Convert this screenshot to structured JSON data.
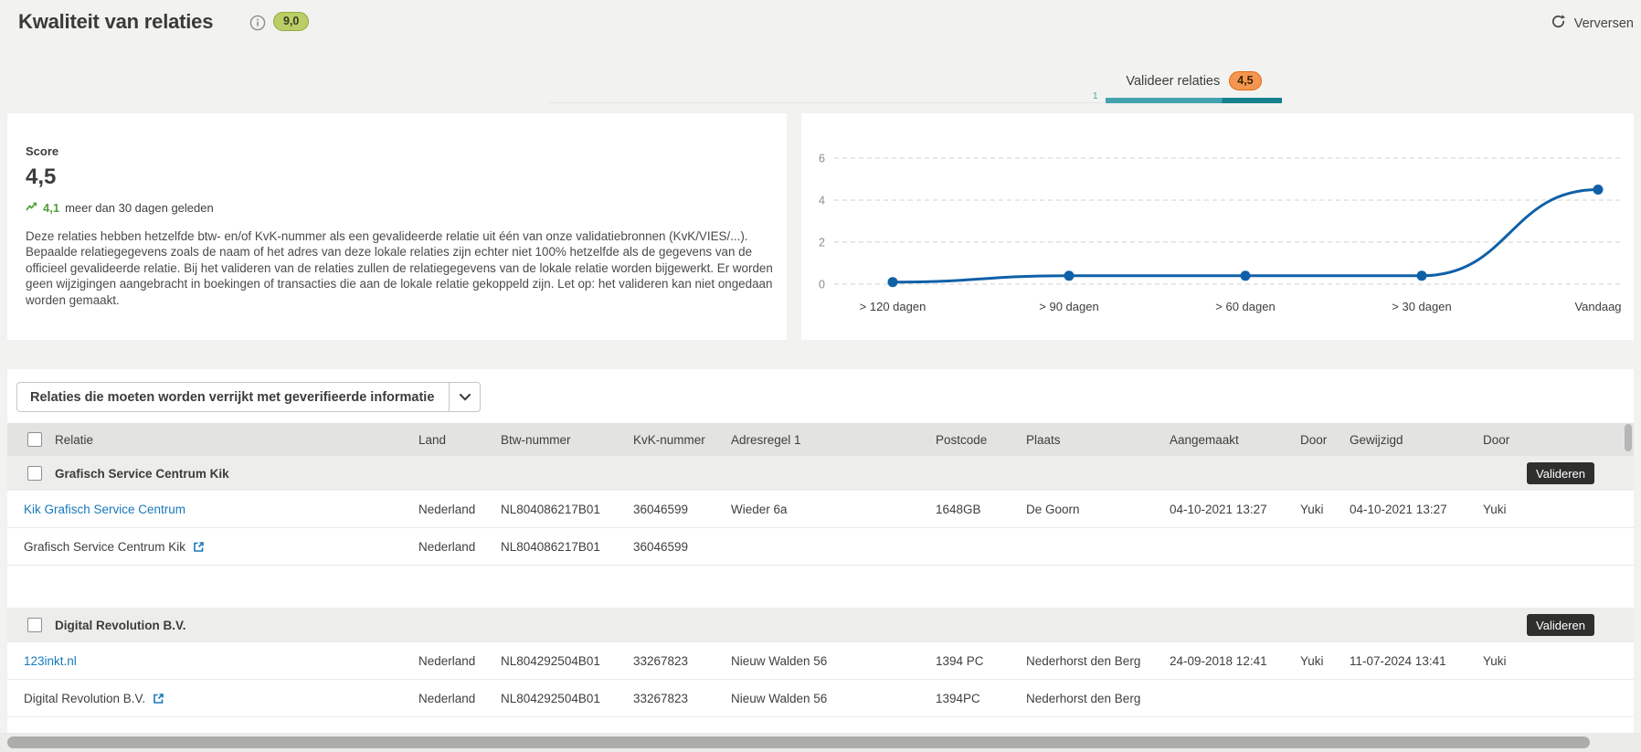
{
  "header": {
    "title": "Kwaliteit van relaties",
    "score_badge": "9,0",
    "refresh_label": "Verversen"
  },
  "tabs": {
    "active_label": "Valideer relaties",
    "active_badge": "4,5",
    "indicator": "1"
  },
  "score_panel": {
    "label": "Score",
    "value": "4,5",
    "trend_value": "4,1",
    "trend_suffix": "meer dan 30 dagen geleden",
    "description": "Deze relaties hebben hetzelfde btw- en/of KvK-nummer als een gevalideerde relatie uit één van onze validatiebronnen (KvK/VIES/...). Bepaalde relatiegegevens zoals de naam of het adres van deze lokale relaties zijn echter niet 100% hetzelfde als de gegevens van de officieel gevalideerde relatie. Bij het valideren van de relaties zullen de relatiegegevens van de lokale relatie worden bijgewerkt. Er worden geen wijzigingen aangebracht in boekingen of transacties die aan de lokale relatie gekoppeld zijn. Let op: het valideren kan niet ongedaan worden gemaakt."
  },
  "chart_data": {
    "type": "line",
    "title": "",
    "categories": [
      "> 120 dagen",
      "> 90 dagen",
      "> 60 dagen",
      "> 30 dagen",
      "Vandaag"
    ],
    "values": [
      0.1,
      0.4,
      0.4,
      0.4,
      4.5
    ],
    "yticks": [
      0,
      2,
      4,
      6
    ],
    "ylim": [
      0,
      6.8
    ],
    "xlabel": "",
    "ylabel": "",
    "line_color": "#1060a8",
    "grid": "horizontal-dashed",
    "legend_position": "none"
  },
  "filter": {
    "label": "Relaties die moeten worden verrijkt met geverifieerde informatie"
  },
  "table": {
    "columns": [
      "Relatie",
      "Land",
      "Btw-nummer",
      "KvK-nummer",
      "Adresregel 1",
      "Postcode",
      "Plaats",
      "Aangemaakt",
      "Door",
      "Gewijzigd",
      "Door"
    ],
    "validate_label": "Valideren",
    "groups": [
      {
        "name": "Grafisch Service Centrum Kik",
        "rows": [
          {
            "name": "Kik Grafisch Service Centrum",
            "land": "Nederland",
            "btw": "NL804086217B01",
            "kvk": "36046599",
            "adres": "Wieder 6a",
            "postcode": "1648GB",
            "plaats": "De Goorn",
            "aangemaakt": "04-10-2021 13:27",
            "aangemaakt_door": "Yuki",
            "gewijzigd": "04-10-2021 13:27",
            "gewijzigd_door": "Yuki"
          },
          {
            "name": "Grafisch Service Centrum Kik",
            "land": "Nederland",
            "btw": "NL804086217B01",
            "kvk": "36046599",
            "adres": "",
            "postcode": "",
            "plaats": "",
            "aangemaakt": "",
            "aangemaakt_door": "",
            "gewijzigd": "",
            "gewijzigd_door": ""
          }
        ]
      },
      {
        "name": "Digital Revolution B.V.",
        "rows": [
          {
            "name": "123inkt.nl",
            "land": "Nederland",
            "btw": "NL804292504B01",
            "kvk": "33267823",
            "adres": "Nieuw Walden 56",
            "postcode": "1394 PC",
            "plaats": "Nederhorst den Berg",
            "aangemaakt": "24-09-2018 12:41",
            "aangemaakt_door": "Yuki",
            "gewijzigd": "11-07-2024 13:41",
            "gewijzigd_door": "Yuki"
          },
          {
            "name": "Digital Revolution B.V.",
            "land": "Nederland",
            "btw": "NL804292504B01",
            "kvk": "33267823",
            "adres": "Nieuw Walden 56",
            "postcode": "1394PC",
            "plaats": "Nederhorst den Berg",
            "aangemaakt": "",
            "aangemaakt_door": "",
            "gewijzigd": "",
            "gewijzigd_door": ""
          }
        ]
      }
    ]
  }
}
